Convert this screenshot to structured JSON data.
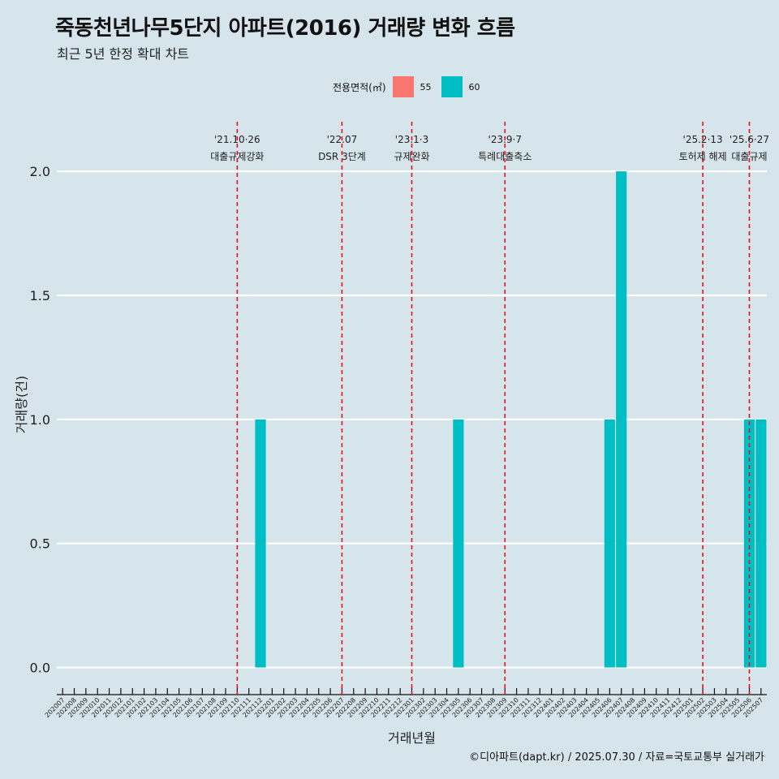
{
  "title": "죽동천년나무5단지 아파트(2016) 거래량 변화 흐름",
  "subtitle": "최근 5년 한정 확대 차트",
  "caption": "©디아파트(dapt.kr) / 2025.07.30 / 자료=국토교통부 실거래가",
  "legend": {
    "title": "전용면적(㎡)",
    "items": [
      {
        "label": "55",
        "color": "#f8766d"
      },
      {
        "label": "60",
        "color": "#00bfc4"
      }
    ]
  },
  "chart_data": {
    "type": "bar",
    "xlabel": "거래년월",
    "ylabel": "거래량(건)",
    "ylim": [
      -0.08,
      2.2
    ],
    "yticks": [
      0.0,
      0.5,
      1.0,
      1.5,
      2.0
    ],
    "ytick_labels": [
      "0.0",
      "0.5",
      "1.0",
      "1.5",
      "2.0"
    ],
    "grid": true,
    "legend_position": "top",
    "categories": [
      "202007",
      "202008",
      "202009",
      "202010",
      "202011",
      "202012",
      "202101",
      "202102",
      "202103",
      "202104",
      "202105",
      "202106",
      "202107",
      "202108",
      "202109",
      "202110",
      "202111",
      "202112",
      "202201",
      "202202",
      "202203",
      "202204",
      "202205",
      "202206",
      "202207",
      "202208",
      "202209",
      "202210",
      "202211",
      "202212",
      "202301",
      "202302",
      "202303",
      "202304",
      "202305",
      "202306",
      "202307",
      "202308",
      "202309",
      "202310",
      "202311",
      "202312",
      "202401",
      "202402",
      "202403",
      "202404",
      "202405",
      "202406",
      "202407",
      "202408",
      "202409",
      "202410",
      "202411",
      "202412",
      "202501",
      "202502",
      "202503",
      "202504",
      "202505",
      "202506",
      "202507"
    ],
    "series": [
      {
        "name": "55",
        "color": "#f8766d",
        "values": {}
      },
      {
        "name": "60",
        "color": "#00bfc4",
        "values": {
          "202112": 1,
          "202305": 1,
          "202406": 1,
          "202407": 2,
          "202506": 1,
          "202507": 1
        }
      }
    ],
    "annotations": [
      {
        "x": "202110",
        "date": "'21.10·26",
        "label": "대출규제강화"
      },
      {
        "x": "202207",
        "date": "'22.07",
        "label": "DSR 3단계"
      },
      {
        "x": "202301",
        "date": "'23.1·3",
        "label": "규제완화"
      },
      {
        "x": "202309",
        "date": "'23.9·7",
        "label": "특례대출축소"
      },
      {
        "x": "202502",
        "date": "'25.2·13",
        "label": "토허제 해제"
      },
      {
        "x": "202506",
        "date": "'25.6·27",
        "label": "대출규제"
      }
    ]
  }
}
